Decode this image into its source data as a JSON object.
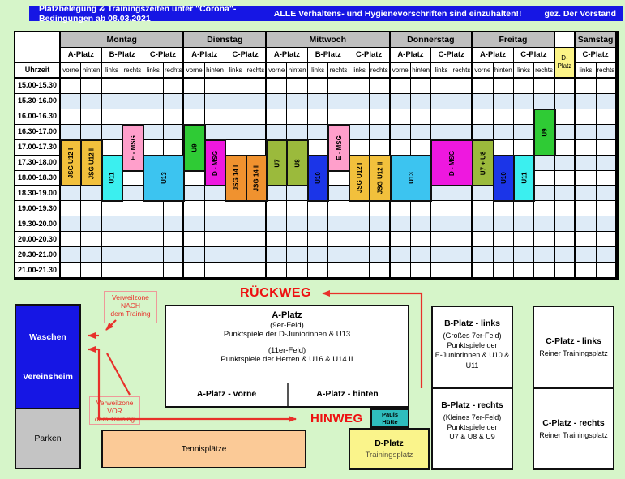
{
  "titlebar": {
    "left": "Platzbelegung & Trainingszeiten unter \"Corona\"-Bedingungen ab 08.03.2021",
    "middle": "ALLE Verhaltens- und Hygienevorschriften sind einzuhalten!!",
    "right": "gez. Der Vorstand"
  },
  "colors": {
    "page-green": "#D6F5C9",
    "title-blue": "#1616E4",
    "header-gray": "#BFBFBF",
    "row-alt": "#DEEBF7",
    "dplatz-yellow": "#FCF487",
    "map-yellow": "#FAF48B",
    "parken-gray": "#C4C4C4",
    "tennis-peach": "#FBCA97",
    "pauls-teal": "#2FBDBD",
    "red": "#E8302A",
    "gold": "#F2C03C",
    "cyan": "#3BEFEF",
    "pink": "#FF9FCB",
    "lightblue": "#3CC4F0",
    "green": "#2FCB35",
    "magenta": "#EE18DF",
    "orange": "#F0922F",
    "olive": "#9BBA3C",
    "blue": "#1B35E8"
  },
  "schedule": {
    "uhrzeit_label": "Uhrzeit",
    "times": [
      "15.00-15.30",
      "15.30-16.00",
      "16.00-16.30",
      "16.30-17.00",
      "17.00-17.30",
      "17.30-18.00",
      "18.00-18.30",
      "18.30-19.00",
      "19.00-19.30",
      "19.30-20.00",
      "20.00-20.30",
      "20.30-21.00",
      "21.00-21.30"
    ],
    "days": [
      {
        "label": "Montag",
        "groups": [
          {
            "label": "A-Platz",
            "subs": [
              "vorne",
              "hinten"
            ]
          },
          {
            "label": "B-Platz",
            "subs": [
              "links",
              "rechts"
            ]
          },
          {
            "label": "C-Platz",
            "subs": [
              "links",
              "rechts"
            ]
          }
        ]
      },
      {
        "label": "Dienstag",
        "groups": [
          {
            "label": "A-Platz",
            "subs": [
              "vorne",
              "hinten"
            ]
          },
          {
            "label": "C-Platz",
            "subs": [
              "links",
              "rechts"
            ]
          }
        ]
      },
      {
        "label": "Mittwoch",
        "groups": [
          {
            "label": "A-Platz",
            "subs": [
              "vorne",
              "hinten"
            ]
          },
          {
            "label": "B-Platz",
            "subs": [
              "links",
              "rechts"
            ]
          },
          {
            "label": "C-Platz",
            "subs": [
              "links",
              "rechts"
            ]
          }
        ]
      },
      {
        "label": "Donnerstag",
        "groups": [
          {
            "label": "A-Platz",
            "subs": [
              "vorne",
              "hinten"
            ]
          },
          {
            "label": "C-Platz",
            "subs": [
              "links",
              "rechts"
            ]
          }
        ]
      },
      {
        "label": "Freitag",
        "groups": [
          {
            "label": "A-Platz",
            "subs": [
              "vorne",
              "hinten"
            ]
          },
          {
            "label": "C-Platz",
            "subs": [
              "links",
              "rechts"
            ]
          }
        ]
      },
      {
        "label": "",
        "d_platz": true,
        "header_lines": [
          "D-",
          "Platz"
        ]
      },
      {
        "label": "Samstag",
        "groups": [
          {
            "label": "C-Platz",
            "subs": [
              "links",
              "rechts"
            ]
          }
        ]
      }
    ],
    "blocks": [
      {
        "day": "Montag",
        "platz": "A-Platz vorne",
        "team": "JSG U12 I",
        "time": "17.00-18.30",
        "color": "gold",
        "col": 1,
        "span": 1,
        "row": 5,
        "rows": 3
      },
      {
        "day": "Montag",
        "platz": "A-Platz hinten",
        "team": "JSG U12 II",
        "time": "17.00-18.30",
        "color": "gold",
        "col": 2,
        "span": 1,
        "row": 5,
        "rows": 3
      },
      {
        "day": "Montag",
        "platz": "B-Platz links",
        "team": "U11",
        "time": "17.30-19.00",
        "color": "cyan",
        "col": 3,
        "span": 1,
        "row": 6,
        "rows": 3
      },
      {
        "day": "Montag",
        "platz": "B-Platz rechts",
        "team": "E - MSG",
        "time": "16.30-18.00",
        "color": "pink",
        "col": 4,
        "span": 1,
        "row": 4,
        "rows": 3
      },
      {
        "day": "Montag",
        "platz": "C-Platz",
        "team": "U13",
        "time": "17.30-19.00",
        "color": "lightblue",
        "col": 5,
        "span": 2,
        "row": 6,
        "rows": 3
      },
      {
        "day": "Dienstag",
        "platz": "A-Platz vorne",
        "team": "U9",
        "time": "16.30-18.00",
        "color": "green",
        "col": 7,
        "span": 1,
        "row": 4,
        "rows": 3
      },
      {
        "day": "Dienstag",
        "platz": "A-Platz hinten",
        "team": "D - MSG",
        "time": "17.00-18.30",
        "color": "magenta",
        "col": 8,
        "span": 1,
        "row": 5,
        "rows": 3
      },
      {
        "day": "Dienstag",
        "platz": "C-Platz links",
        "team": "JSG 14 I",
        "time": "17.30-19.00",
        "color": "orange",
        "col": 9,
        "span": 1,
        "row": 6,
        "rows": 3
      },
      {
        "day": "Dienstag",
        "platz": "C-Platz rechts",
        "team": "JSG 14 II",
        "time": "17.30-19.00",
        "color": "orange",
        "col": 10,
        "span": 1,
        "row": 6,
        "rows": 3
      },
      {
        "day": "Mittwoch",
        "platz": "A-Platz vorne",
        "team": "U7",
        "time": "17.00-18.30",
        "color": "olive",
        "col": 11,
        "span": 1,
        "row": 5,
        "rows": 3
      },
      {
        "day": "Mittwoch",
        "platz": "A-Platz hinten",
        "team": "U8",
        "time": "17.00-18.30",
        "color": "olive",
        "col": 12,
        "span": 1,
        "row": 5,
        "rows": 3
      },
      {
        "day": "Mittwoch",
        "platz": "B-Platz links",
        "team": "U10",
        "time": "17.30-19.00",
        "color": "blue",
        "col": 13,
        "span": 1,
        "row": 6,
        "rows": 3
      },
      {
        "day": "Mittwoch",
        "platz": "B-Platz rechts",
        "team": "E - MSG",
        "time": "16.30-18.00",
        "color": "pink",
        "col": 14,
        "span": 1,
        "row": 4,
        "rows": 3
      },
      {
        "day": "Mittwoch",
        "platz": "C-Platz links",
        "team": "JSG U12 I",
        "time": "17.30-19.00",
        "color": "gold",
        "col": 15,
        "span": 1,
        "row": 6,
        "rows": 3
      },
      {
        "day": "Mittwoch",
        "platz": "C-Platz rechts",
        "team": "JSG U12 II",
        "time": "17.30-19.00",
        "color": "gold",
        "col": 16,
        "span": 1,
        "row": 6,
        "rows": 3
      },
      {
        "day": "Donnerstag",
        "platz": "A-Platz",
        "team": "U13",
        "time": "17.30-19.00",
        "color": "lightblue",
        "col": 17,
        "span": 2,
        "row": 6,
        "rows": 3
      },
      {
        "day": "Donnerstag",
        "platz": "C-Platz",
        "team": "D - MSG",
        "time": "17.00-18.30",
        "color": "magenta",
        "col": 19,
        "span": 2,
        "row": 5,
        "rows": 3
      },
      {
        "day": "Freitag",
        "platz": "A-Platz vorne",
        "team": "U7 + U8",
        "time": "17.00-18.30",
        "color": "olive",
        "col": 21,
        "span": 1,
        "row": 5,
        "rows": 3
      },
      {
        "day": "Freitag",
        "platz": "A-Platz hinten",
        "team": "U10",
        "time": "17.30-19.00",
        "color": "blue",
        "col": 22,
        "span": 1,
        "row": 6,
        "rows": 3
      },
      {
        "day": "Freitag",
        "platz": "C-Platz links",
        "team": "U11",
        "time": "17.30-19.00",
        "color": "cyan",
        "col": 23,
        "span": 1,
        "row": 6,
        "rows": 3
      },
      {
        "day": "Freitag",
        "platz": "C-Platz rechts",
        "team": "U9",
        "time": "16.00-17.30",
        "color": "green",
        "col": 24,
        "span": 1,
        "row": 3,
        "rows": 3
      }
    ]
  },
  "map": {
    "rueckweg": "RÜCKWEG",
    "hinweg": "HINWEG",
    "waschen": "Waschen",
    "vereinsheim": "Vereinsheim",
    "parken": "Parken",
    "verweil_nach": [
      "Verweilzone",
      "NACH",
      "dem Training"
    ],
    "verweil_vor": [
      "Verweilzone",
      "VOR",
      "dem Training"
    ],
    "a_platz": {
      "title": "A-Platz",
      "line1": "(9er-Feld)",
      "line2": "Punktspiele der D-Juniorinnen & U13",
      "line3": "(11er-Feld)",
      "line4": "Punktspiele der Herren & U16 & U14 II",
      "vorne": "A-Platz - vorne",
      "hinten": "A-Platz - hinten"
    },
    "b_links": {
      "title": "B-Platz - links",
      "lines": [
        "(Großes 7er-Feld)",
        "Punktspiele der",
        "E-Juniorinnen & U10 &",
        "U11"
      ]
    },
    "b_rechts": {
      "title": "B-Platz - rechts",
      "lines": [
        "(Kleines 7er-Feld)",
        "Punktspiele der",
        "U7 & U8 & U9"
      ]
    },
    "c_links": {
      "title": "C-Platz - links",
      "sub": "Reiner Trainingsplatz"
    },
    "c_rechts": {
      "title": "C-Platz - rechts",
      "sub": "Reiner Trainingsplatz"
    },
    "pauls": [
      "Pauls",
      "Hütte"
    ],
    "d_platz": {
      "title": "D-Platz",
      "sub": "Trainingsplatz"
    },
    "tennis": "Tennisplätze"
  }
}
